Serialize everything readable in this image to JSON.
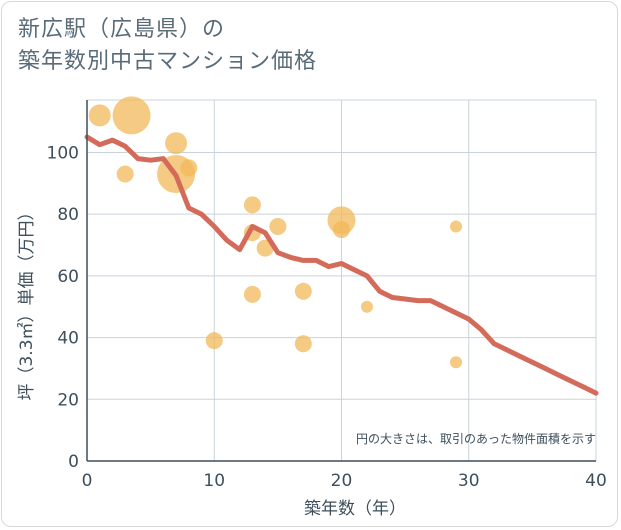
{
  "title": {
    "line1": "新広駅（広島県）の",
    "line2": "築年数別中古マンション価格"
  },
  "chart_data": {
    "type": "scatter",
    "xlabel": "築年数（年）",
    "ylabel": "坪（3.3㎡）単価（万円）",
    "xlim": [
      0,
      40
    ],
    "ylim": [
      0,
      117
    ],
    "xticks": [
      0,
      10,
      20,
      30,
      40
    ],
    "yticks": [
      0,
      20,
      40,
      60,
      80,
      100
    ],
    "grid": true,
    "note": "円の大きさは、取引のあった物件面積を示す",
    "colors": {
      "bubble": "#f2b85a",
      "line": "#d46b5a",
      "grid": "#c9d3dc",
      "text": "#3d4f5c"
    },
    "bubbles": [
      {
        "x": 1,
        "y": 112,
        "size": "medium"
      },
      {
        "x": 3.5,
        "y": 112,
        "size": "xlarge"
      },
      {
        "x": 7,
        "y": 103,
        "size": "medium"
      },
      {
        "x": 3,
        "y": 93,
        "size": "small"
      },
      {
        "x": 7,
        "y": 93,
        "size": "xlarge"
      },
      {
        "x": 8,
        "y": 95,
        "size": "small"
      },
      {
        "x": 13,
        "y": 83,
        "size": "small"
      },
      {
        "x": 15,
        "y": 76,
        "size": "small"
      },
      {
        "x": 13,
        "y": 74,
        "size": "small"
      },
      {
        "x": 14,
        "y": 69,
        "size": "small"
      },
      {
        "x": 20,
        "y": 78,
        "size": "large"
      },
      {
        "x": 20,
        "y": 75,
        "size": "small"
      },
      {
        "x": 29,
        "y": 76,
        "size": "tiny"
      },
      {
        "x": 13,
        "y": 54,
        "size": "small"
      },
      {
        "x": 17,
        "y": 55,
        "size": "small"
      },
      {
        "x": 22,
        "y": 50,
        "size": "tiny"
      },
      {
        "x": 10,
        "y": 39,
        "size": "small"
      },
      {
        "x": 17,
        "y": 38,
        "size": "small"
      },
      {
        "x": 29,
        "y": 32,
        "size": "tiny"
      }
    ],
    "trend": {
      "x": [
        0,
        1,
        2,
        3,
        4,
        5,
        6,
        7,
        8,
        9,
        10,
        11,
        12,
        13,
        14,
        15,
        16,
        17,
        18,
        19,
        20,
        21,
        22,
        23,
        24,
        25,
        26,
        27,
        28,
        29,
        30,
        31,
        32,
        33,
        34,
        35,
        36,
        37,
        38,
        39,
        40
      ],
      "y": [
        105,
        102.5,
        104,
        102,
        98,
        97.5,
        98,
        92.5,
        82,
        80,
        76,
        71.5,
        68.5,
        76,
        74,
        67.5,
        66,
        65,
        65,
        63,
        64,
        62,
        60,
        55,
        53,
        52.5,
        52,
        52,
        50,
        48,
        46,
        42.5,
        38,
        36,
        34,
        32,
        30,
        28,
        26,
        24,
        22
      ]
    }
  }
}
